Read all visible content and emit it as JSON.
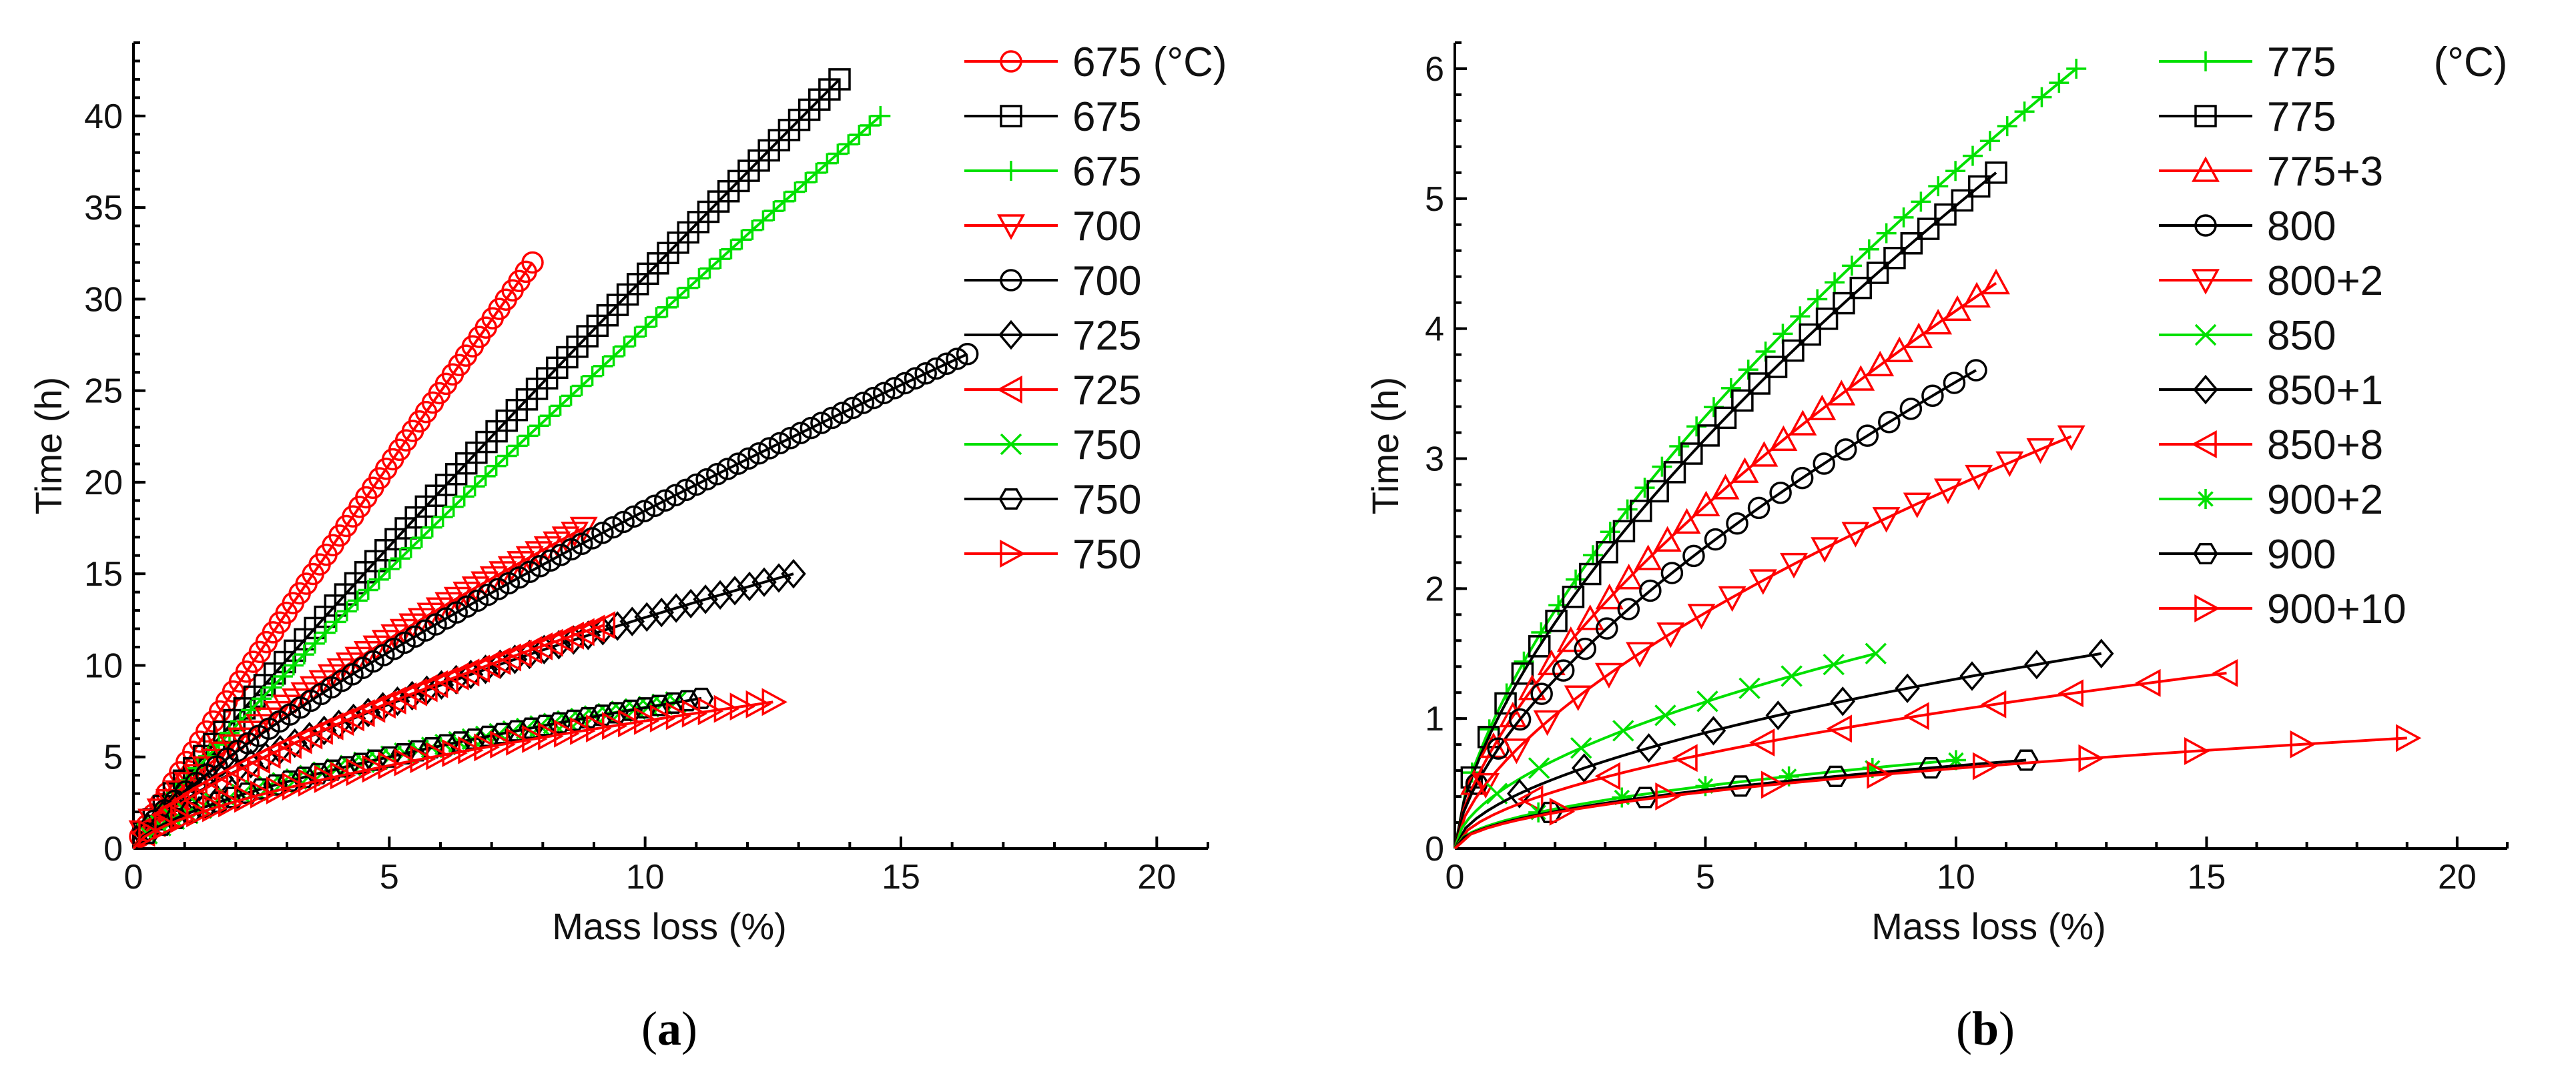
{
  "chart_data": [
    {
      "type": "line",
      "panel_label": {
        "open": "(",
        "letter": "a",
        "close": ")"
      },
      "xlabel": "Mass loss (%)",
      "ylabel": "Time (h)",
      "xlim": [
        0,
        21
      ],
      "ylim": [
        0,
        44
      ],
      "xticks": [
        0,
        5,
        10,
        15,
        20
      ],
      "yticks": [
        0,
        5,
        10,
        15,
        20,
        25,
        30,
        35,
        40
      ],
      "legend_unit": "",
      "series": [
        {
          "name": "675 (°C)",
          "color": "#ff0000",
          "marker": "circle",
          "end_x": 7.8,
          "end_y": 32,
          "exp": 0.95,
          "n": 60
        },
        {
          "name": "675",
          "color": "#000000",
          "marker": "square",
          "end_x": 13.8,
          "end_y": 42,
          "exp": 0.92,
          "n": 70
        },
        {
          "name": "675",
          "color": "#00e000",
          "marker": "plus",
          "end_x": 14.6,
          "end_y": 40,
          "exp": 0.9,
          "n": 70
        },
        {
          "name": "700",
          "color": "#ff0000",
          "marker": "tri-down",
          "end_x": 8.8,
          "end_y": 17.5,
          "exp": 0.75,
          "n": 50
        },
        {
          "name": "700",
          "color": "#000000",
          "marker": "circle",
          "end_x": 16.3,
          "end_y": 27,
          "exp": 0.78,
          "n": 80
        },
        {
          "name": "725",
          "color": "#000000",
          "marker": "diamond",
          "end_x": 12.9,
          "end_y": 15,
          "exp": 0.68,
          "n": 45
        },
        {
          "name": "725",
          "color": "#ff0000",
          "marker": "tri-left",
          "end_x": 9.2,
          "end_y": 12.2,
          "exp": 0.7,
          "n": 45
        },
        {
          "name": "750",
          "color": "#00e000",
          "marker": "x",
          "end_x": 10.6,
          "end_y": 8,
          "exp": 0.62,
          "n": 40
        },
        {
          "name": "750",
          "color": "#000000",
          "marker": "hexagon",
          "end_x": 11.1,
          "end_y": 8.2,
          "exp": 0.62,
          "n": 40
        },
        {
          "name": "750",
          "color": "#ff0000",
          "marker": "tri-right",
          "end_x": 12.5,
          "end_y": 8,
          "exp": 0.62,
          "n": 40
        }
      ]
    },
    {
      "type": "line",
      "panel_label": {
        "open": "(",
        "letter": "b",
        "close": ")"
      },
      "xlabel": "Mass loss (%)",
      "ylabel": "Time (h)",
      "xlim": [
        0,
        21
      ],
      "ylim": [
        0,
        6.2
      ],
      "xticks": [
        0,
        5,
        10,
        15,
        20
      ],
      "yticks": [
        0,
        1,
        2,
        3,
        4,
        5,
        6
      ],
      "legend_unit": "(°C)",
      "series": [
        {
          "name": "775",
          "color": "#00e000",
          "marker": "plus",
          "end_x": 12.4,
          "end_y": 6.0,
          "exp": 0.65,
          "n": 36
        },
        {
          "name": "775",
          "color": "#000000",
          "marker": "square",
          "end_x": 10.8,
          "end_y": 5.2,
          "exp": 0.65,
          "n": 32
        },
        {
          "name": "775+3",
          "color": "#ff0000",
          "marker": "tri-up",
          "end_x": 10.8,
          "end_y": 4.35,
          "exp": 0.65,
          "n": 28
        },
        {
          "name": "800",
          "color": "#000000",
          "marker": "circle",
          "end_x": 10.4,
          "end_y": 3.68,
          "exp": 0.63,
          "n": 24
        },
        {
          "name": "800+2",
          "color": "#ff0000",
          "marker": "tri-down",
          "end_x": 12.3,
          "end_y": 3.17,
          "exp": 0.62,
          "n": 20
        },
        {
          "name": "850",
          "color": "#00e000",
          "marker": "x",
          "end_x": 8.4,
          "end_y": 1.5,
          "exp": 0.55,
          "n": 10
        },
        {
          "name": "850+1",
          "color": "#000000",
          "marker": "diamond",
          "end_x": 12.9,
          "end_y": 1.5,
          "exp": 0.55,
          "n": 10
        },
        {
          "name": "850+8",
          "color": "#ff0000",
          "marker": "tri-left",
          "end_x": 15.4,
          "end_y": 1.35,
          "exp": 0.55,
          "n": 10
        },
        {
          "name": "900+2",
          "color": "#00e000",
          "marker": "asterisk",
          "end_x": 10.0,
          "end_y": 0.68,
          "exp": 0.5,
          "n": 6
        },
        {
          "name": "900",
          "color": "#000000",
          "marker": "hexagon",
          "end_x": 11.4,
          "end_y": 0.68,
          "exp": 0.5,
          "n": 6
        },
        {
          "name": "900+10",
          "color": "#ff0000",
          "marker": "tri-right",
          "end_x": 19.0,
          "end_y": 0.85,
          "exp": 0.5,
          "n": 9
        }
      ]
    }
  ]
}
